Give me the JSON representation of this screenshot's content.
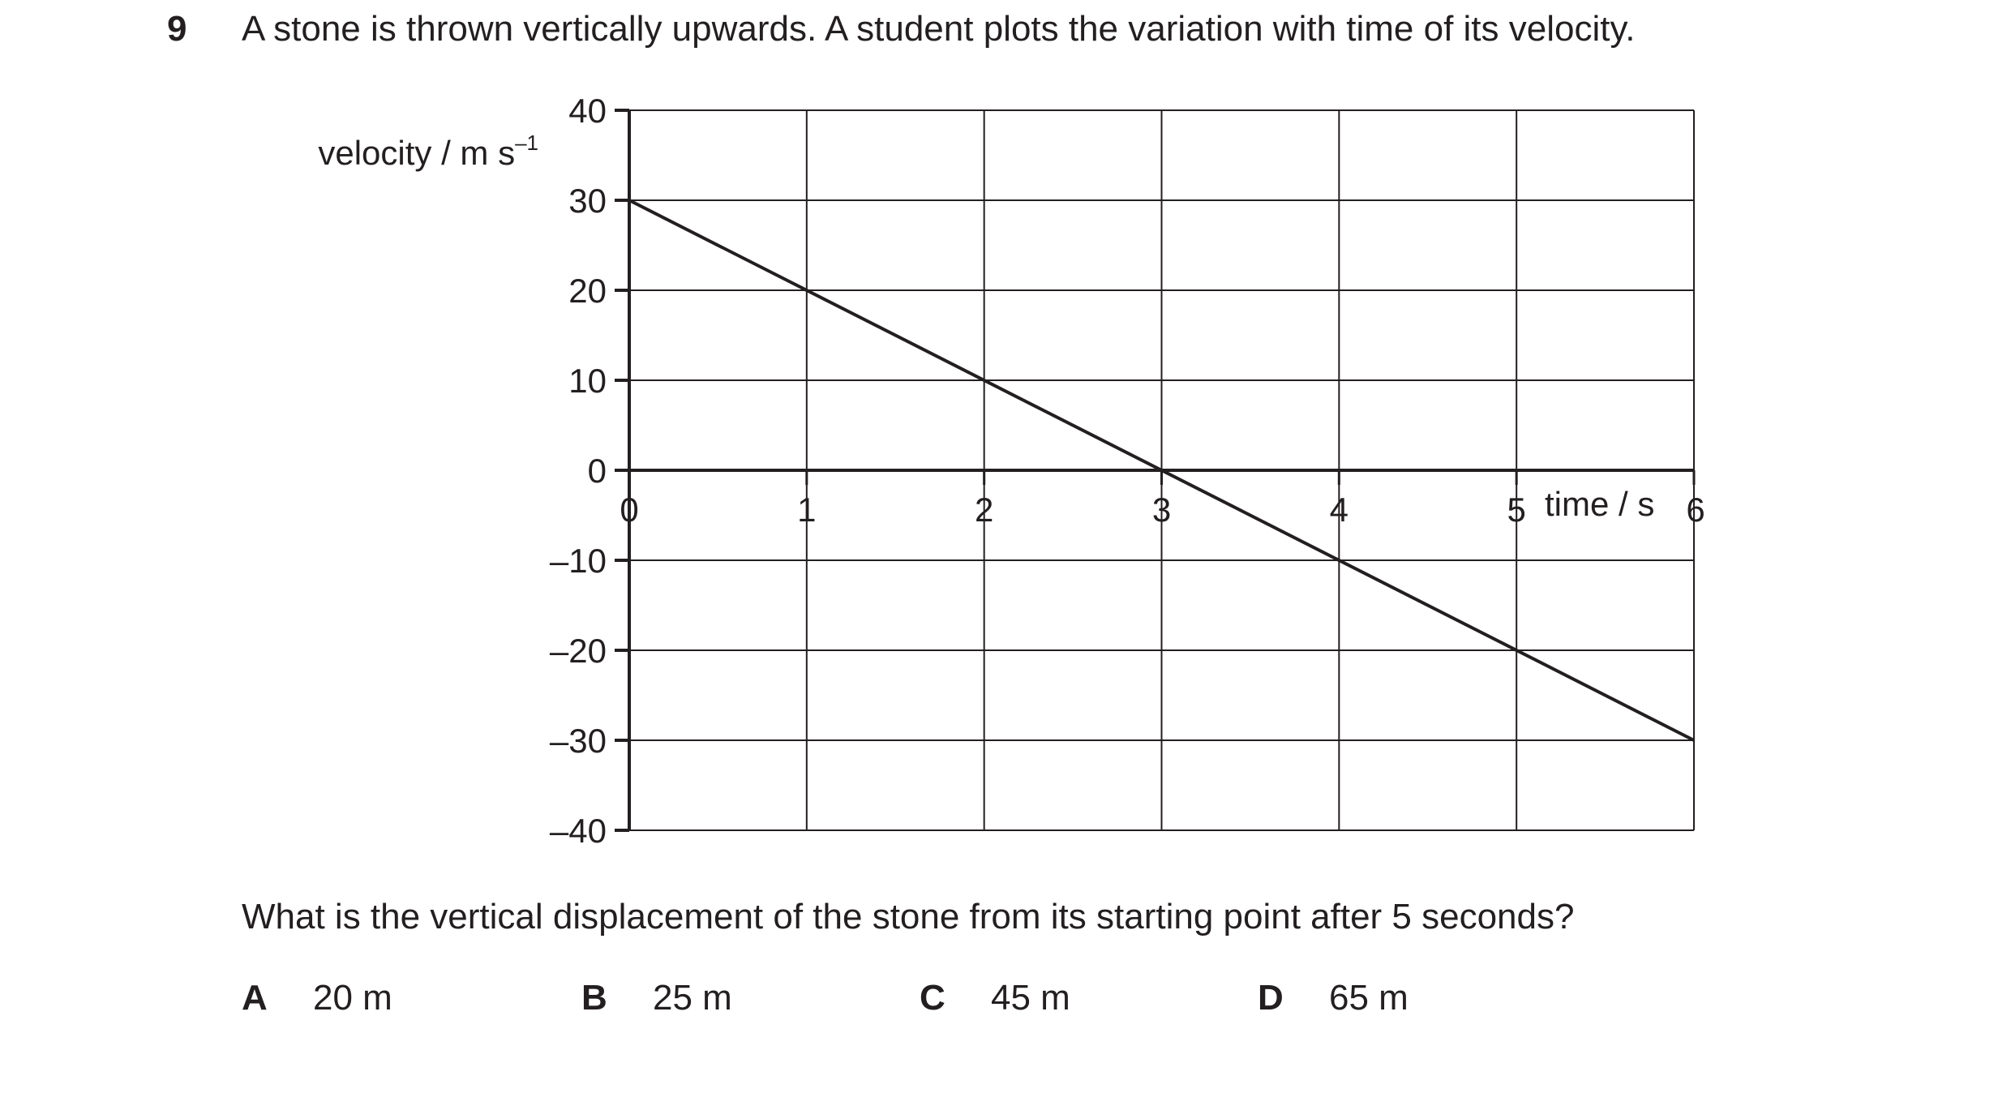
{
  "question": {
    "number": "9",
    "stem": "A stone is thrown vertically upwards. A student plots the variation with time of its velocity.",
    "prompt": "What is the vertical displacement of the stone from its starting point after 5 seconds?",
    "options": [
      {
        "letter": "A",
        "text": "20 m"
      },
      {
        "letter": "B",
        "text": "25 m"
      },
      {
        "letter": "C",
        "text": "45 m"
      },
      {
        "letter": "D",
        "text": "65 m"
      }
    ]
  },
  "chart_data": {
    "type": "line",
    "title": "",
    "xlabel": "time / s",
    "ylabel": "velocity / m s",
    "ylabel_superscript": "–1",
    "xlim": [
      0,
      6
    ],
    "ylim": [
      -40,
      40
    ],
    "x_ticks": [
      0,
      1,
      2,
      3,
      4,
      5,
      6
    ],
    "x_tick_labels": [
      "0",
      "1",
      "2",
      "3",
      "4",
      "5",
      "6"
    ],
    "y_ticks": [
      40,
      30,
      20,
      10,
      0,
      -10,
      -20,
      -30,
      -40
    ],
    "y_tick_labels": [
      "40",
      "30",
      "20",
      "10",
      "0",
      "–10",
      "–20",
      "–30",
      "–40"
    ],
    "grid": true,
    "series": [
      {
        "x": [
          0,
          6
        ],
        "y": [
          30,
          -30
        ]
      }
    ],
    "colors": {
      "line": "#231f20",
      "grid": "#231f20"
    }
  }
}
